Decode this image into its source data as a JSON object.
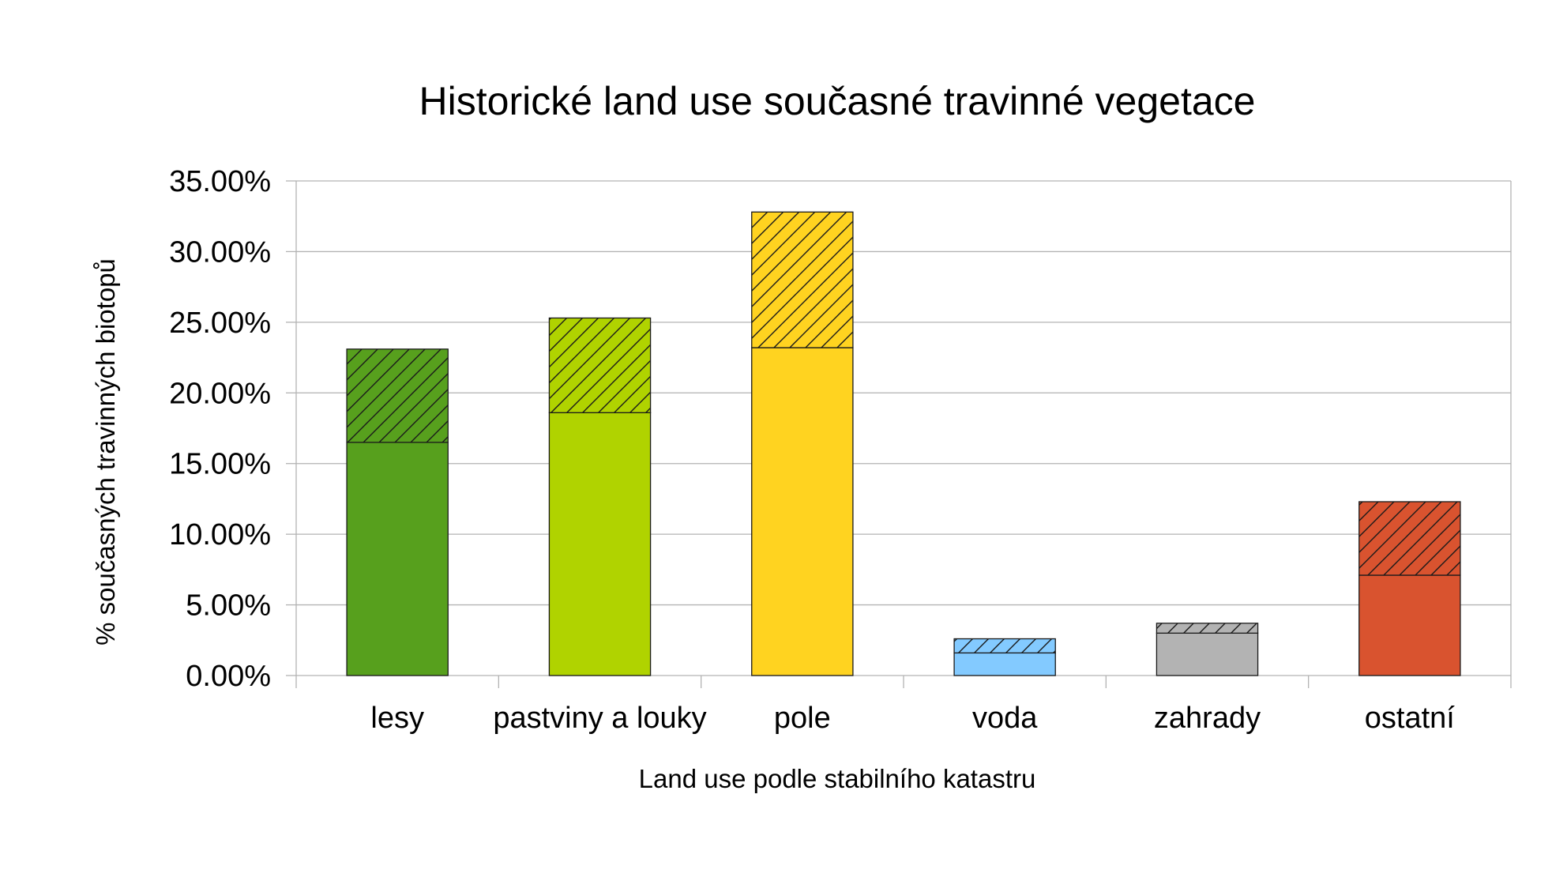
{
  "chart_data": {
    "type": "bar",
    "stacked": true,
    "title": "Historické land use současné travinné vegetace",
    "xlabel": "Land use podle stabilního katastru",
    "ylabel": "% současných travinných biotopů",
    "ylim": [
      0,
      0.35
    ],
    "yticks": [
      "0.00%",
      "5.00%",
      "10.00%",
      "15.00%",
      "20.00%",
      "25.00%",
      "30.00%",
      "35.00%"
    ],
    "grid": true,
    "legend": "none",
    "categories": [
      "lesy",
      "pastviny a louky",
      "pole",
      "voda",
      "zahrady",
      "ostatní"
    ],
    "colors": [
      "#57a01d",
      "#b0d300",
      "#ffd320",
      "#83caff",
      "#b3b3b3",
      "#d9532f"
    ],
    "hatch_colors": [
      "#3d7a12",
      "#8aa800",
      "#d9ac00",
      "#5aa9e6",
      "#8c8c8c",
      "#b03a1f"
    ],
    "series": [
      {
        "pattern": "solid",
        "values": [
          0.165,
          0.186,
          0.232,
          0.016,
          0.03,
          0.071
        ]
      },
      {
        "pattern": "hatched",
        "values": [
          0.066,
          0.067,
          0.096,
          0.01,
          0.007,
          0.052
        ]
      }
    ]
  }
}
